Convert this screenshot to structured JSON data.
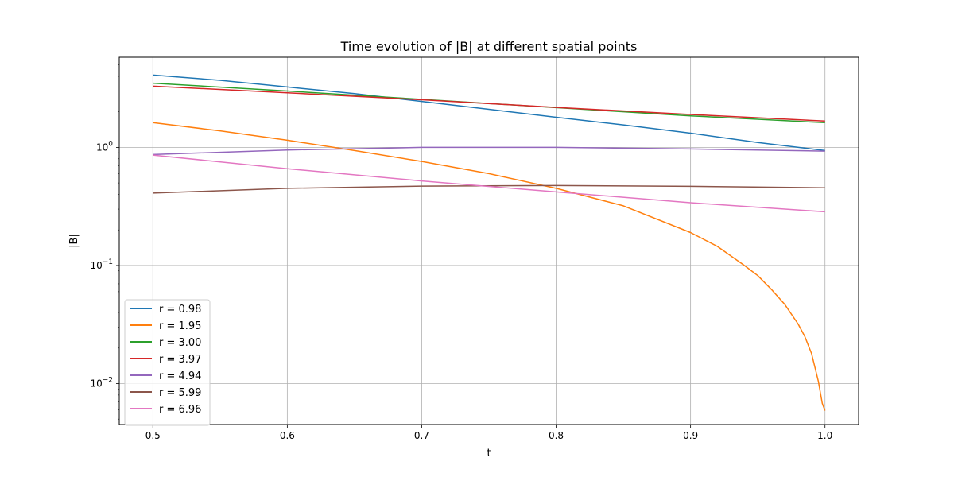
{
  "chart_data": {
    "type": "line",
    "title": "Time evolution of |B| at different spatial points",
    "xlabel": "t",
    "ylabel": "|B|",
    "xlim": [
      0.475,
      1.025
    ],
    "ylim": [
      0.0045,
      5.8
    ],
    "yscale": "log",
    "grid": true,
    "legend_position": "lower-left",
    "x_ticks": [
      0.5,
      0.6,
      0.7,
      0.8,
      0.9,
      1.0
    ],
    "x_tick_labels": [
      "0.5",
      "0.6",
      "0.7",
      "0.8",
      "0.9",
      "1.0"
    ],
    "y_ticks": [
      0.01,
      0.1,
      1
    ],
    "y_tick_labels": [
      {
        "base": "10",
        "exp": "−2"
      },
      {
        "base": "10",
        "exp": "−1"
      },
      {
        "base": "10",
        "exp": "0"
      }
    ],
    "series": [
      {
        "name": "r = 0.98",
        "color": "#1f77b4",
        "x": [
          0.5,
          0.55,
          0.6,
          0.65,
          0.7,
          0.75,
          0.8,
          0.85,
          0.9,
          0.95,
          1.0
        ],
        "y": [
          4.1,
          3.7,
          3.25,
          2.85,
          2.45,
          2.1,
          1.8,
          1.55,
          1.32,
          1.1,
          0.94
        ]
      },
      {
        "name": "r = 1.95",
        "color": "#ff7f0e",
        "x": [
          0.5,
          0.55,
          0.6,
          0.65,
          0.7,
          0.75,
          0.8,
          0.85,
          0.9,
          0.92,
          0.94,
          0.95,
          0.96,
          0.97,
          0.98,
          0.985,
          0.99,
          0.995,
          0.998,
          1.0
        ],
        "y": [
          1.62,
          1.38,
          1.15,
          0.94,
          0.76,
          0.6,
          0.45,
          0.32,
          0.19,
          0.145,
          0.1,
          0.082,
          0.063,
          0.047,
          0.032,
          0.025,
          0.018,
          0.0105,
          0.0068,
          0.0059
        ]
      },
      {
        "name": "r = 3.00",
        "color": "#2ca02c",
        "x": [
          0.5,
          0.6,
          0.7,
          0.8,
          0.9,
          1.0
        ],
        "y": [
          3.5,
          3.0,
          2.55,
          2.17,
          1.85,
          1.62
        ]
      },
      {
        "name": "r = 3.97",
        "color": "#d62728",
        "x": [
          0.5,
          0.6,
          0.7,
          0.8,
          0.9,
          1.0
        ],
        "y": [
          3.3,
          2.9,
          2.53,
          2.18,
          1.9,
          1.67
        ]
      },
      {
        "name": "r = 4.94",
        "color": "#9467bd",
        "x": [
          0.5,
          0.6,
          0.7,
          0.8,
          0.9,
          1.0
        ],
        "y": [
          0.87,
          0.95,
          1.0,
          1.0,
          0.97,
          0.93
        ]
      },
      {
        "name": "r = 5.99",
        "color": "#8c564b",
        "x": [
          0.5,
          0.6,
          0.7,
          0.8,
          0.9,
          1.0
        ],
        "y": [
          0.41,
          0.45,
          0.47,
          0.475,
          0.468,
          0.455
        ]
      },
      {
        "name": "r = 6.96",
        "color": "#e377c2",
        "x": [
          0.5,
          0.6,
          0.7,
          0.8,
          0.9,
          1.0
        ],
        "y": [
          0.86,
          0.66,
          0.52,
          0.42,
          0.34,
          0.285
        ]
      }
    ]
  }
}
